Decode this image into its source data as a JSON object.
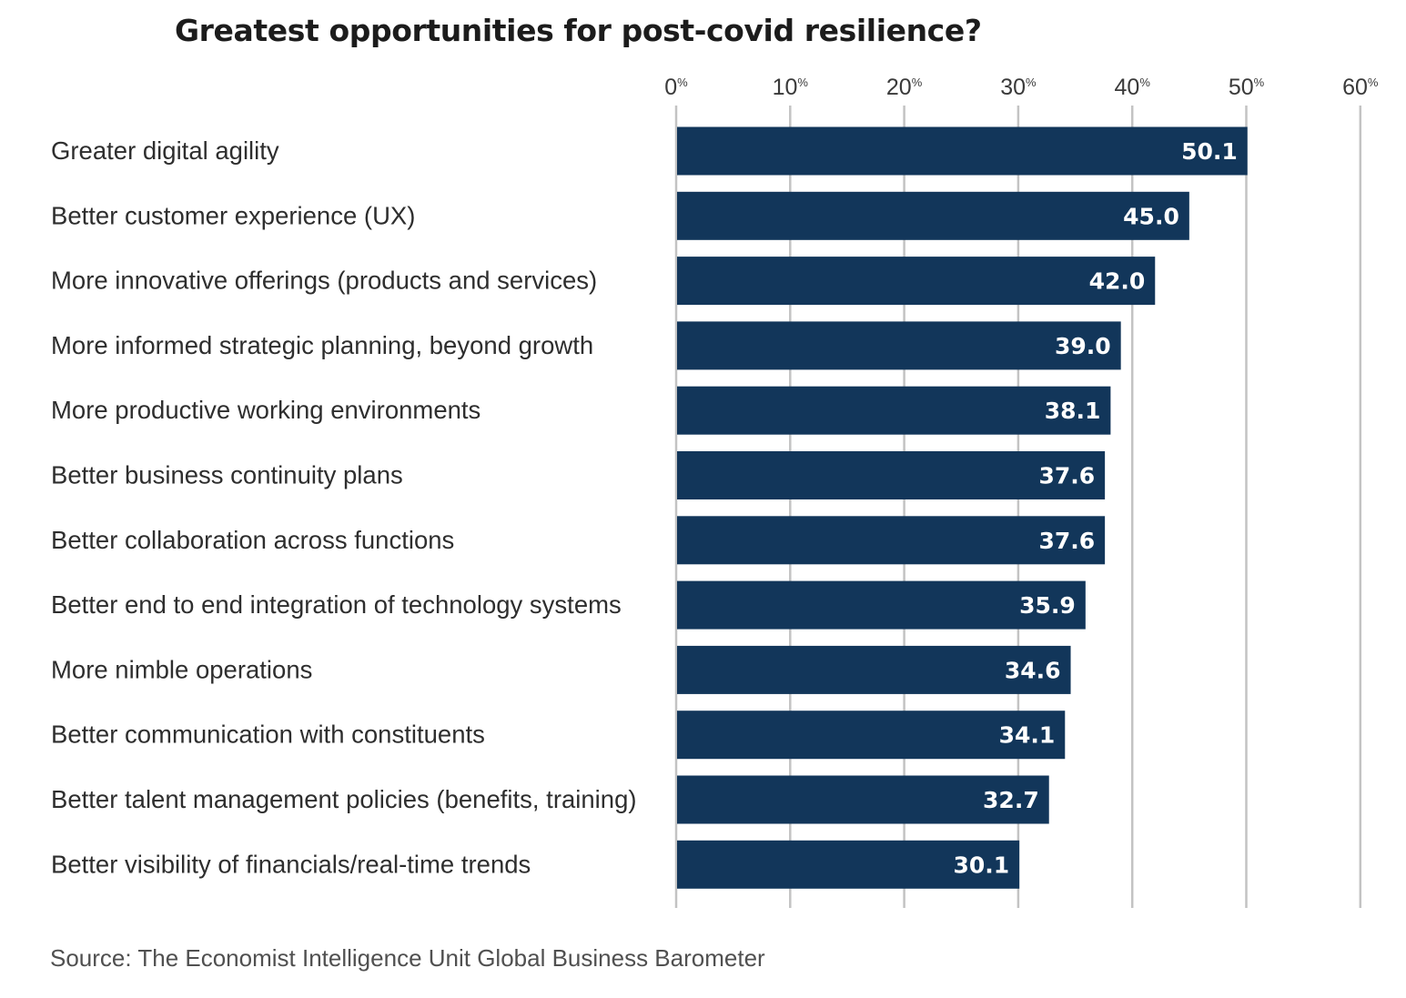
{
  "chart_data": {
    "type": "bar",
    "orientation": "horizontal",
    "title": "Greatest opportunities for post-covid resilience?",
    "source": "Source: The Economist Intelligence Unit Global Business Barometer",
    "categories": [
      "Greater digital agility",
      "Better customer experience (UX)",
      "More innovative offerings (products and services)",
      "More informed strategic planning, beyond growth",
      "More productive working environments",
      "Better business continuity plans",
      "Better collaboration across functions",
      "Better end to end integration of technology systems",
      "More nimble operations",
      "Better communication with constituents",
      "Better talent management policies (benefits, training)",
      "Better visibility of financials/real-time trends"
    ],
    "values": [
      50.1,
      45.0,
      42.0,
      39.0,
      38.1,
      37.6,
      37.6,
      35.9,
      34.6,
      34.1,
      32.7,
      30.1
    ],
    "value_labels": [
      "50.1",
      "45.0",
      "42.0",
      "39.0",
      "38.1",
      "37.6",
      "37.6",
      "35.9",
      "34.6",
      "34.1",
      "32.7",
      "30.1"
    ],
    "x_ticks": [
      {
        "value": 0,
        "label": "0",
        "unit": "%"
      },
      {
        "value": 10,
        "label": "10",
        "unit": "%"
      },
      {
        "value": 20,
        "label": "20",
        "unit": "%"
      },
      {
        "value": 30,
        "label": "30",
        "unit": "%"
      },
      {
        "value": 40,
        "label": "40",
        "unit": "%"
      },
      {
        "value": 50,
        "label": "50",
        "unit": "%"
      },
      {
        "value": 60,
        "label": "60",
        "unit": "%"
      }
    ],
    "xlim": [
      0,
      60
    ],
    "x_axis_position": "top",
    "grid": true,
    "legend": "none",
    "xlabel": "",
    "ylabel": ""
  },
  "colors": {
    "bar": "#12365a",
    "grid": "#c3c3c3",
    "value_label": "#ffffff",
    "category_label": "#2e2e2e",
    "tick_label": "#3a3a3a"
  }
}
